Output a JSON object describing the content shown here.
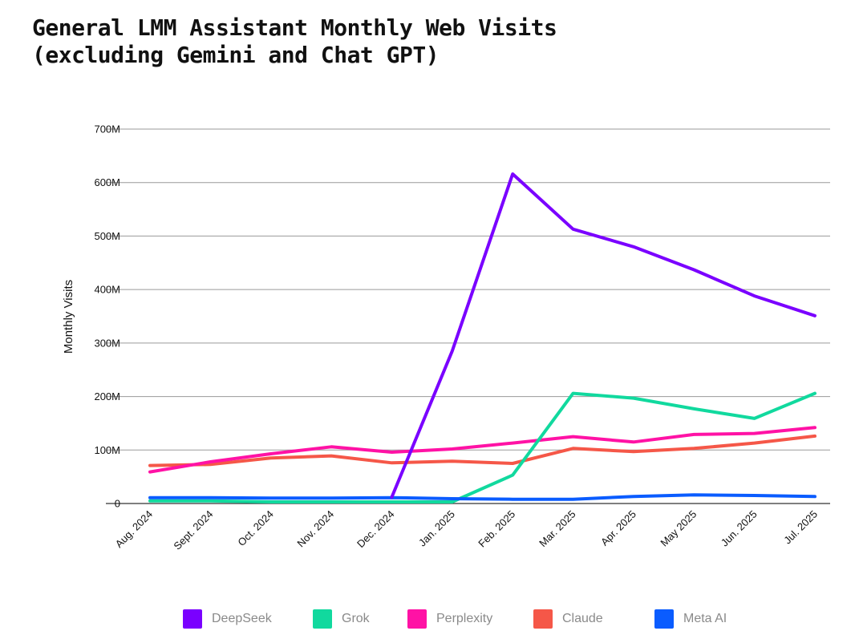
{
  "title": {
    "line1": "General LMM Assistant Monthly Web Visits",
    "line2": "(excluding Gemini and Chat GPT)"
  },
  "chart_data": {
    "type": "line",
    "title": "General LMM Assistant Monthly Web Visits (excluding Gemini and Chat GPT)",
    "xlabel": "",
    "ylabel": "Monthly Visits",
    "ylim": [
      0,
      700000000
    ],
    "yticks": [
      0,
      100000000,
      200000000,
      300000000,
      400000000,
      500000000,
      600000000,
      700000000
    ],
    "ytick_labels": [
      "0",
      "100M",
      "200M",
      "300M",
      "400M",
      "500M",
      "600M",
      "700M"
    ],
    "grid": true,
    "legend_position": "bottom",
    "categories": [
      "Aug. 2024",
      "Sept. 2024",
      "Oct. 2024",
      "Nov. 2024",
      "Dec. 2024",
      "Jan. 2025",
      "Feb. 2025",
      "Mar. 2025",
      "Apr. 2025",
      "May 2025",
      "Jun. 2025",
      "Jul. 2025"
    ],
    "series": [
      {
        "name": "DeepSeek",
        "color": "#7a00ff",
        "values": [
          null,
          null,
          null,
          null,
          12000000,
          285000000,
          616000000,
          513000000,
          480000000,
          437000000,
          388000000,
          351000000
        ]
      },
      {
        "name": "Grok",
        "color": "#11d99e",
        "values": [
          5000000,
          5000000,
          3000000,
          3000000,
          3000000,
          3000000,
          53000000,
          206000000,
          197000000,
          177000000,
          159000000,
          206000000
        ]
      },
      {
        "name": "Perplexity",
        "color": "#ff12a5",
        "values": [
          59000000,
          78000000,
          93000000,
          106000000,
          96000000,
          102000000,
          113000000,
          125000000,
          115000000,
          129000000,
          131000000,
          142000000
        ]
      },
      {
        "name": "Claude",
        "color": "#f55748",
        "values": [
          71000000,
          73000000,
          85000000,
          89000000,
          76000000,
          79000000,
          75000000,
          103000000,
          97000000,
          103000000,
          113000000,
          126000000
        ]
      },
      {
        "name": "Meta AI",
        "color": "#0a5cff",
        "values": [
          11000000,
          11000000,
          10000000,
          10000000,
          11000000,
          9000000,
          8000000,
          8000000,
          13000000,
          16000000,
          15000000,
          13000000
        ]
      }
    ]
  }
}
